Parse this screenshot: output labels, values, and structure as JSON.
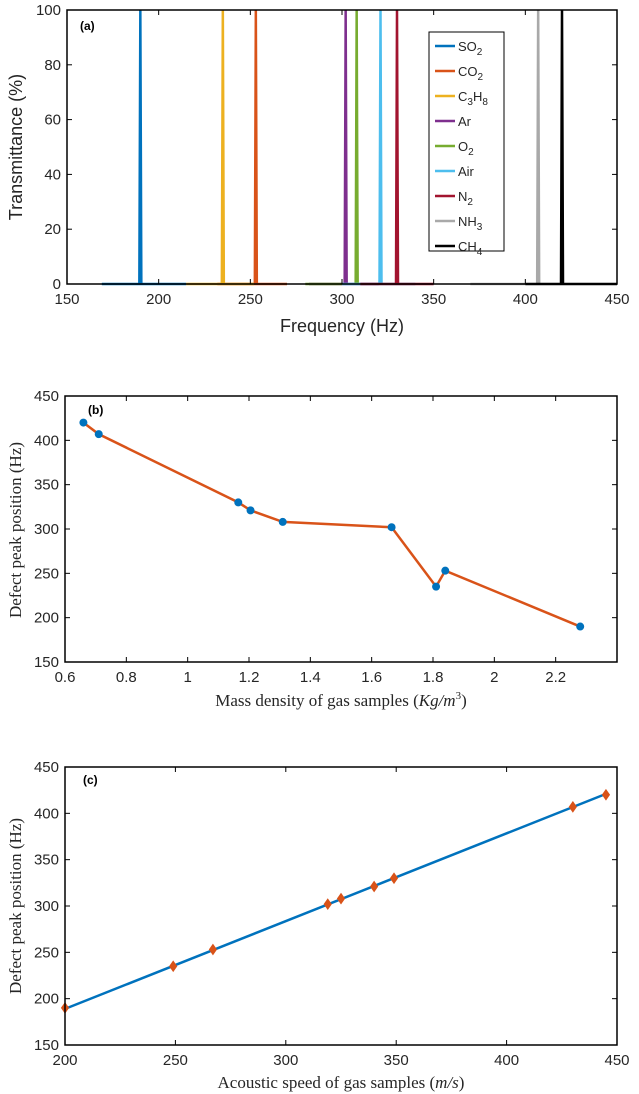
{
  "chart_data": [
    {
      "panel": "(a)",
      "type": "line",
      "xlabel": "Frequency (Hz)",
      "ylabel": "Transmittance (%)",
      "xlim": [
        150,
        450
      ],
      "ylim": [
        0,
        100
      ],
      "xticks": [
        150,
        200,
        250,
        300,
        350,
        400,
        450
      ],
      "yticks": [
        0,
        20,
        40,
        60,
        80,
        100
      ],
      "grid": false,
      "legend_position": "top-right",
      "series": [
        {
          "name": "SO2",
          "label_main": "SO",
          "label_sub": "2",
          "color": "#0072BD",
          "peak": 190,
          "baseline": [
            169,
            215
          ]
        },
        {
          "name": "CO2",
          "label_main": "CO",
          "label_sub": "2",
          "color": "#D95319",
          "peak": 253,
          "baseline": [
            232,
            270
          ]
        },
        {
          "name": "C3H8",
          "label_main": "C",
          "label_sub": "3",
          "label_main2": "H",
          "label_sub2": "8",
          "color": "#EDB120",
          "peak": 235,
          "baseline": [
            215,
            252
          ]
        },
        {
          "name": "Ar",
          "label_main": "Ar",
          "label_sub": "",
          "color": "#7E2F8E",
          "peak": 302,
          "baseline": [
            282,
            320
          ]
        },
        {
          "name": "O2",
          "label_main": "O",
          "label_sub": "2",
          "color": "#77AC30",
          "peak": 308,
          "baseline": [
            280,
            300
          ]
        },
        {
          "name": "Air",
          "label_main": "Air",
          "label_sub": "",
          "color": "#4DBEEE",
          "peak": 321,
          "baseline": [
            300,
            340
          ]
        },
        {
          "name": "N2",
          "label_main": "N",
          "label_sub": "2",
          "color": "#A2142F",
          "peak": 330,
          "baseline": [
            310,
            350
          ]
        },
        {
          "name": "NH3",
          "label_main": "NH",
          "label_sub": "3",
          "color": "#A9A9A9",
          "peak": 407,
          "baseline": [
            370,
            400
          ]
        },
        {
          "name": "CH4",
          "label_main": "CH",
          "label_sub": "4",
          "color": "#000000",
          "peak": 420,
          "baseline": [
            400,
            450
          ]
        }
      ]
    },
    {
      "panel": "(b)",
      "type": "line",
      "xlabel_prefix": "Mass density of gas samples (",
      "xlabel_unit": "Kg/m",
      "xlabel_sup": "3",
      "xlabel_suffix": ")",
      "ylabel": "Defect peak position (Hz)",
      "xlim": [
        0.6,
        2.4
      ],
      "ylim": [
        150,
        450
      ],
      "xticks": [
        0.6,
        0.8,
        1,
        1.2,
        1.4,
        1.6,
        1.8,
        2,
        2.2
      ],
      "yticks": [
        150,
        200,
        250,
        300,
        350,
        400,
        450
      ],
      "grid": false,
      "line_color": "#D95319",
      "marker_color": "#0072BD",
      "x": [
        0.66,
        0.71,
        1.165,
        1.205,
        1.31,
        1.665,
        1.81,
        1.84,
        2.28
      ],
      "y": [
        420,
        407,
        330,
        321,
        308,
        302,
        235,
        253,
        190
      ]
    },
    {
      "panel": "(c)",
      "type": "line",
      "xlabel_prefix": "Acoustic speed of gas samples (",
      "xlabel_unit": "m/s",
      "xlabel_suffix": ")",
      "ylabel": "Defect peak position (Hz)",
      "xlim": [
        200,
        450
      ],
      "ylim": [
        150,
        450
      ],
      "xticks": [
        200,
        250,
        300,
        350,
        400,
        450
      ],
      "yticks": [
        150,
        200,
        250,
        300,
        350,
        400,
        450
      ],
      "grid": false,
      "line_color": "#0072BD",
      "marker_color": "#D95319",
      "fit_line": {
        "x": [
          200,
          445
        ],
        "y": [
          189,
          421
        ]
      },
      "x": [
        200,
        249,
        267,
        319,
        325,
        340,
        349,
        430,
        445
      ],
      "y": [
        190,
        235,
        253,
        302,
        308,
        321,
        330,
        407,
        420
      ]
    }
  ]
}
